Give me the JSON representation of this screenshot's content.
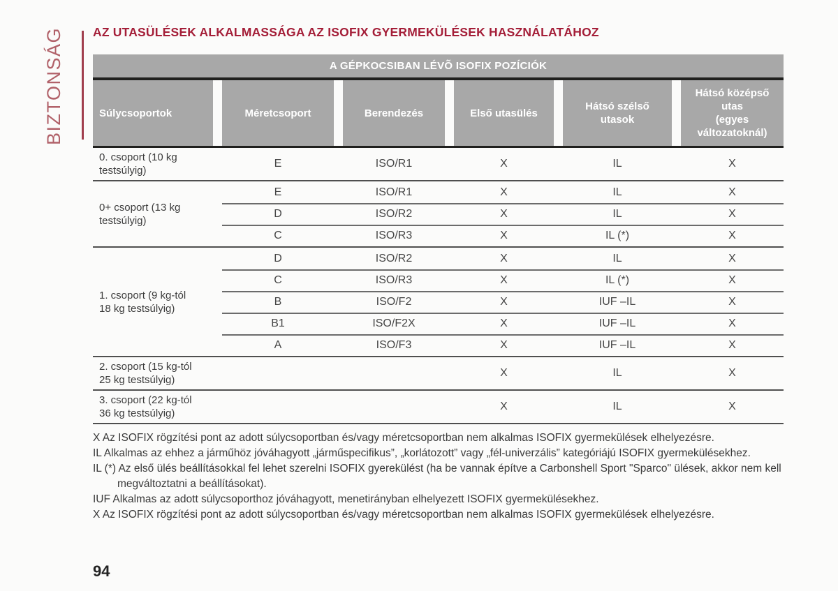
{
  "sidebar": {
    "label": "BIZTONSÁG"
  },
  "page": {
    "title": "AZ UTASÜLÉSEK ALKALMASSÁGA AZ ISOFIX GYERMEKÜLÉSEK HASZNÁLATÁHOZ",
    "number": "94"
  },
  "colors": {
    "accent_red": "#a41e38",
    "sidebar_red": "#b16169",
    "header_gray": "#a8a8a8",
    "rule_dark": "#20201e",
    "rule_gray": "#4f4f4f"
  },
  "table": {
    "caption": "A GÉPKOCSIBAN LÉVÕ ISOFIX POZÍCIÓK",
    "columns": [
      {
        "label": "Súlycsoportok"
      },
      {
        "label": "Méretcsoport"
      },
      {
        "label": "Berendezés"
      },
      {
        "label": "Első utasülés"
      },
      {
        "label": "Hátsó szélső\nutasok"
      },
      {
        "label": "Hátsó középső\nutas\n(egyes\nváltozatoknál)"
      }
    ],
    "groups": [
      {
        "label": "0. csoport (10 kg\ntestsúlyig)",
        "rows": [
          [
            "E",
            "ISO/R1",
            "X",
            "IL",
            "X"
          ]
        ]
      },
      {
        "label": "0+ csoport (13 kg\ntestsúlyig)",
        "rows": [
          [
            "E",
            "ISO/R1",
            "X",
            "IL",
            "X"
          ],
          [
            "D",
            "ISO/R2",
            "X",
            "IL",
            "X"
          ],
          [
            "C",
            "ISO/R3",
            "X",
            "IL (*)",
            "X"
          ]
        ]
      },
      {
        "label": "1. csoport (9 kg-tól\n18 kg testsúlyig)",
        "rows": [
          [
            "D",
            "ISO/R2",
            "X",
            "IL",
            "X"
          ],
          [
            "C",
            "ISO/R3",
            "X",
            "IL (*)",
            "X"
          ],
          [
            "B",
            "ISO/F2",
            "X",
            "IUF –IL",
            "X"
          ],
          [
            "B1",
            "ISO/F2X",
            "X",
            "IUF –IL",
            "X"
          ],
          [
            "A",
            "ISO/F3",
            "X",
            "IUF –IL",
            "X"
          ]
        ]
      },
      {
        "label": "2. csoport (15 kg-tól\n25 kg testsúlyig)",
        "rows": [
          [
            "",
            "",
            "X",
            "IL",
            "X"
          ]
        ]
      },
      {
        "label": "3. csoport (22 kg-tól\n36 kg testsúlyig)",
        "rows": [
          [
            "",
            "",
            "X",
            "IL",
            "X"
          ]
        ]
      }
    ]
  },
  "footnotes": [
    {
      "text": "X Az ISOFIX rögzítési pont az adott súlycsoportban és/vagy méretcsoportban nem alkalmas ISOFIX gyermekülések elhelyezésre.",
      "indent": false
    },
    {
      "text": "IL Alkalmas az ehhez a járműhöz jóváhagyott „járműspecifikus”, „korlátozott” vagy „fél-univerzális” kategóriájú ISOFIX gyermekülésekhez.",
      "indent": false
    },
    {
      "text": "IL (*) Az első ülés beállításokkal fel lehet szerelni ISOFIX gyerekülést (ha be vannak építve a Carbonshell Sport \"Sparco\" ülések, akkor nem kell",
      "indent": false
    },
    {
      "text": "megváltoztatni a beállításokat).",
      "indent": true
    },
    {
      "text": "IUF Alkalmas az adott súlycsoporthoz jóváhagyott, menetirányban elhelyezett ISOFIX gyermekülésekhez.",
      "indent": false
    },
    {
      "text": "X Az ISOFIX rögzítési pont az adott súlycsoportban és/vagy méretcsoportban nem alkalmas ISOFIX gyermekülések elhelyezésre.",
      "indent": false
    }
  ]
}
